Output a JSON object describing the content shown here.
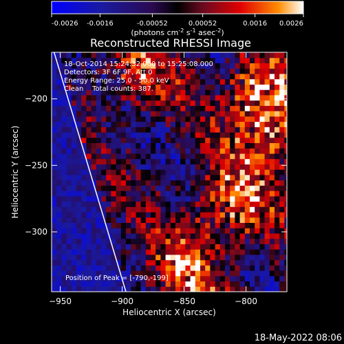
{
  "chart_data": {
    "type": "heatmap",
    "title": "Reconstructed RHESSI Image",
    "xlabel": "Heliocentric X (arcsec)",
    "ylabel": "Heliocentric Y (arcsec)",
    "xlim": [
      -957,
      -767
    ],
    "ylim": [
      -345,
      -165
    ],
    "x_ticks": [
      -950,
      -900,
      -850,
      -800
    ],
    "y_ticks": [
      -200,
      -250,
      -300
    ],
    "colorbar": {
      "range": [
        -0.0026,
        0.0026
      ],
      "ticks": [
        "-0.0026",
        "-0.0016",
        "-0.00052",
        "0.00052",
        "0.0016",
        "0.0026"
      ],
      "unit_label": "(photons cm",
      "unit_exp1": "-2",
      "unit_mid": " s",
      "unit_exp2": "-1",
      "unit_mid2": " asec",
      "unit_exp3": "-2",
      "unit_end": ")"
    },
    "annotations": [
      "18-Oct-2014 15:24:32.000 to 15:25:08.000",
      "Detectors: 3F 6F 9F, Att 0",
      "Energy Range: 25.0 - 50.0 keV",
      "Clean    Total counts: 387."
    ],
    "peak_label": "Position of Peak = [-790,-199]",
    "peak": [
      -790,
      -199
    ],
    "limb_line": [
      [
        -955,
        -165
      ],
      [
        -897,
        -345
      ]
    ],
    "bright_regions": [
      {
        "x": -790,
        "y": -199,
        "level": 1.0
      },
      {
        "x": -815,
        "y": -280,
        "level": 0.75
      },
      {
        "x": -850,
        "y": -330,
        "level": 0.7
      },
      {
        "x": -890,
        "y": -180,
        "level": 0.55
      },
      {
        "x": -775,
        "y": -240,
        "level": 0.6
      }
    ]
  },
  "footer": {
    "date": "18-May-2022 08:06"
  }
}
